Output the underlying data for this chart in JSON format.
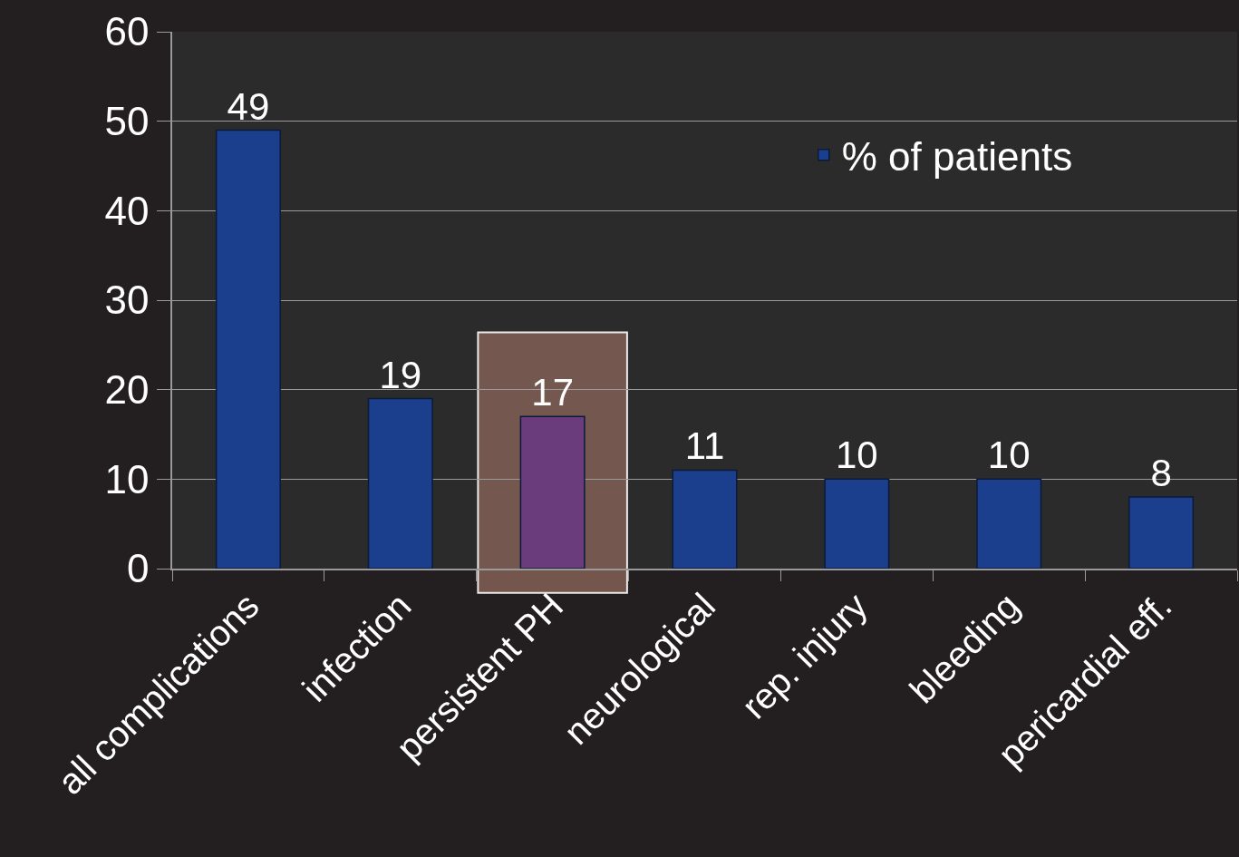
{
  "chart_data": {
    "type": "bar",
    "categories": [
      "all complications",
      "infection",
      "persistent PH",
      "neurological",
      "rep. injury",
      "bleeding",
      "pericardial eff."
    ],
    "series": [
      {
        "name": "% of patients",
        "values": [
          49,
          19,
          17,
          11,
          10,
          10,
          8
        ],
        "colors": [
          "#1b3f8c",
          "#1b3f8c",
          "#6a3c7c",
          "#1b3f8c",
          "#1b3f8c",
          "#1b3f8c",
          "#1b3f8c"
        ]
      }
    ],
    "ylim": [
      0,
      60
    ],
    "yticks": [
      0,
      10,
      20,
      30,
      40,
      50,
      60
    ],
    "bands": [
      {
        "axis": "x",
        "from": "persistent PH",
        "to": "persistent PH",
        "color": "#7d5c52"
      }
    ],
    "data_labels": true,
    "grid": "y",
    "legend": "top right"
  }
}
